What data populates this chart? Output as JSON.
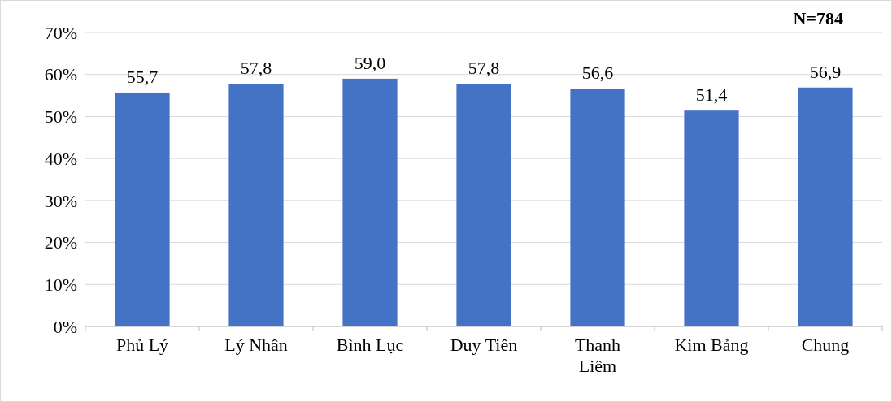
{
  "chart_data": {
    "type": "bar",
    "categories": [
      "Phủ Lý",
      "Lý Nhân",
      "Bình Lục",
      "Duy Tiên",
      "Thanh Liêm",
      "Kim Bảng",
      "Chung"
    ],
    "values": [
      55.7,
      57.8,
      59.0,
      57.8,
      56.6,
      51.4,
      56.9
    ],
    "value_labels": [
      "55,7",
      "57,8",
      "59,0",
      "57,8",
      "56,6",
      "51,4",
      "56,9"
    ],
    "color": "#4472c4",
    "ylim": [
      0,
      70
    ],
    "yticks": [
      {
        "value": 0,
        "label": "0%"
      },
      {
        "value": 10,
        "label": "10%"
      },
      {
        "value": 20,
        "label": "20%"
      },
      {
        "value": 30,
        "label": "30%"
      },
      {
        "value": 40,
        "label": "40%"
      },
      {
        "value": 50,
        "label": "50%"
      },
      {
        "value": 60,
        "label": "60%"
      },
      {
        "value": 70,
        "label": "70%"
      }
    ],
    "grid": "y",
    "annotations": [
      "N=784"
    ]
  }
}
